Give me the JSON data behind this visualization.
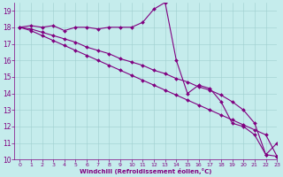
{
  "xlabel": "Windchill (Refroidissement éolien,°C)",
  "bg_color": "#c5ecec",
  "line_color": "#800080",
  "xlim": [
    -0.5,
    23
  ],
  "ylim": [
    10,
    19.5
  ],
  "xticks": [
    0,
    1,
    2,
    3,
    4,
    5,
    6,
    7,
    8,
    9,
    10,
    11,
    12,
    13,
    14,
    15,
    16,
    17,
    18,
    19,
    20,
    21,
    22,
    23
  ],
  "yticks": [
    10,
    11,
    12,
    13,
    14,
    15,
    16,
    17,
    18,
    19
  ],
  "line1_x": [
    0,
    1,
    2,
    3,
    4,
    5,
    6,
    7,
    8,
    9,
    10,
    11,
    12,
    13,
    14,
    15,
    16,
    17,
    18,
    19,
    20,
    21,
    22,
    23
  ],
  "line1_y": [
    18.0,
    18.1,
    18.0,
    18.1,
    17.8,
    18.0,
    18.0,
    17.9,
    18.0,
    18.0,
    18.0,
    18.3,
    19.1,
    19.5,
    16.0,
    14.0,
    14.5,
    14.3,
    13.5,
    12.2,
    12.0,
    11.5,
    10.3,
    11.0
  ],
  "line2_x": [
    0,
    1,
    2,
    3,
    4,
    5,
    6,
    7,
    8,
    9,
    10,
    11,
    12,
    13,
    14,
    15,
    16,
    17,
    18,
    19,
    20,
    21,
    22,
    23
  ],
  "line2_y": [
    18.0,
    17.9,
    17.7,
    17.5,
    17.3,
    17.1,
    16.8,
    16.6,
    16.4,
    16.1,
    15.9,
    15.7,
    15.4,
    15.2,
    14.9,
    14.7,
    14.4,
    14.2,
    13.9,
    13.5,
    13.0,
    12.2,
    10.3,
    10.2
  ],
  "line3_x": [
    0,
    1,
    2,
    3,
    4,
    5,
    6,
    7,
    8,
    9,
    10,
    11,
    12,
    13,
    14,
    15,
    16,
    17,
    18,
    19,
    20,
    21,
    22,
    23
  ],
  "line3_y": [
    18.0,
    17.8,
    17.5,
    17.2,
    16.9,
    16.6,
    16.3,
    16.0,
    15.7,
    15.4,
    15.1,
    14.8,
    14.5,
    14.2,
    13.9,
    13.6,
    13.3,
    13.0,
    12.7,
    12.4,
    12.1,
    11.8,
    11.5,
    10.2
  ]
}
